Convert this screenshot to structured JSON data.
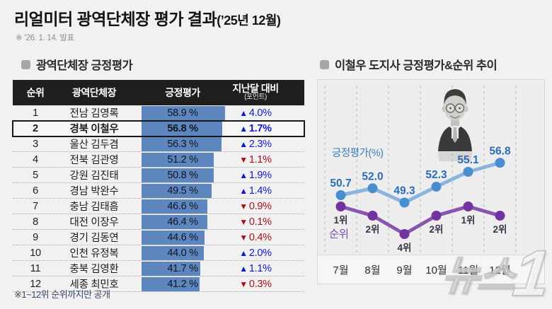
{
  "title": {
    "main": "리얼미터 광역단체장 평가 결과",
    "suffix": "(’25년 12월)"
  },
  "subtitle": "※ ’26. 1. 14. 발표",
  "left": {
    "heading": "광역단체장 긍정평가",
    "table": {
      "headers": {
        "rank": "순위",
        "governor": "광역단체장",
        "approval": "긍정평가",
        "change": "지난달 대비",
        "change_sub": "(포인트)"
      },
      "rows": [
        {
          "rank": "1",
          "governor": "전남 김영록",
          "approval": 58.9,
          "approval_label": "58.9 %",
          "change": "4.0%",
          "direction": "up",
          "highlight": false
        },
        {
          "rank": "2",
          "governor": "경북 이철우",
          "approval": 56.8,
          "approval_label": "56.8 %",
          "change": "1.7%",
          "direction": "up",
          "highlight": true
        },
        {
          "rank": "3",
          "governor": "울산 김두겸",
          "approval": 56.3,
          "approval_label": "56.3 %",
          "change": "2.3%",
          "direction": "up",
          "highlight": false
        },
        {
          "rank": "4",
          "governor": "전북 김관영",
          "approval": 51.2,
          "approval_label": "51.2 %",
          "change": "1.1%",
          "direction": "down",
          "highlight": false
        },
        {
          "rank": "5",
          "governor": "강원 김진태",
          "approval": 50.8,
          "approval_label": "50.8 %",
          "change": "1.9%",
          "direction": "up",
          "highlight": false
        },
        {
          "rank": "6",
          "governor": "경남 박완수",
          "approval": 49.5,
          "approval_label": "49.5 %",
          "change": "1.4%",
          "direction": "up",
          "highlight": false
        },
        {
          "rank": "7",
          "governor": "충남 김태흠",
          "approval": 46.6,
          "approval_label": "46.6 %",
          "change": "0.9%",
          "direction": "down",
          "highlight": false
        },
        {
          "rank": "8",
          "governor": "대전 이장우",
          "approval": 46.4,
          "approval_label": "46.4 %",
          "change": "0.1%",
          "direction": "down",
          "highlight": false
        },
        {
          "rank": "9",
          "governor": "경기 김동연",
          "approval": 44.6,
          "approval_label": "44.6 %",
          "change": "0.4%",
          "direction": "down",
          "highlight": false
        },
        {
          "rank": "10",
          "governor": "인천 유정복",
          "approval": 44.0,
          "approval_label": "44.0 %",
          "change": "2.0%",
          "direction": "up",
          "highlight": false
        },
        {
          "rank": "11",
          "governor": "충북 김영환",
          "approval": 41.7,
          "approval_label": "41.7 %",
          "change": "1.1%",
          "direction": "up",
          "highlight": false
        },
        {
          "rank": "12",
          "governor": "세종 최민호",
          "approval": 41.2,
          "approval_label": "41.2 %",
          "change": "0.3%",
          "direction": "down",
          "highlight": false
        }
      ]
    },
    "footnote": "※1~12위 순위까지만 공개"
  },
  "right": {
    "heading": "이철우 도지사 긍정평가&순위 추이"
  },
  "chart_data": {
    "type": "line",
    "categories": [
      "7월",
      "8월",
      "9월",
      "10월",
      "11월",
      "12월"
    ],
    "series": [
      {
        "name": "긍정평가(%)",
        "values": [
          50.7,
          52.0,
          49.3,
          52.3,
          55.1,
          56.8
        ],
        "labels": [
          "50.7",
          "52.0",
          "49.3",
          "52.3",
          "55.1",
          "56.8"
        ],
        "line_color": "#8ab3dd",
        "dot_color": "#4a8ed2",
        "label_color": "#2a6db5"
      },
      {
        "name": "순위",
        "values": [
          1,
          2,
          4,
          2,
          1,
          2
        ],
        "labels": [
          "1위",
          "2위",
          "4위",
          "2위",
          "1위",
          "2위"
        ],
        "line_color": "#8a55ae",
        "dot_color": "#7233a0",
        "label_color": "#3a3447"
      }
    ],
    "grid": "vertical-dashed",
    "legend_position": "inline-left",
    "approval_axis_label": "긍정평가(%)",
    "rank_axis_label": "순위"
  },
  "colors": {
    "bar": "#5e86bf",
    "up": "#1318c4",
    "down": "#a5101e",
    "header_bg": "#1f1f1f",
    "panel_bg": "#ededee",
    "page_bg": "#f1f1f2"
  },
  "watermark": {
    "part1": "뉴스",
    "part2": "1"
  }
}
